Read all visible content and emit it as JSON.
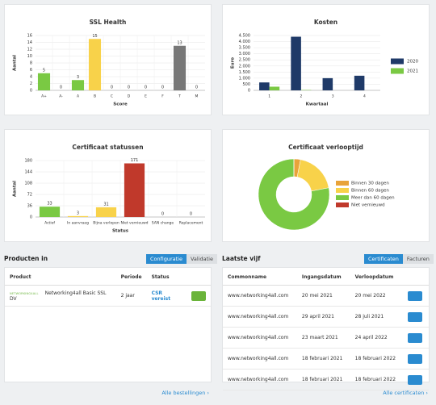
{
  "chart_data": [
    {
      "type": "bar",
      "title": "SSL Health",
      "ylabel": "Aantal",
      "xlabel": "Score",
      "categories": [
        "A+",
        "A-",
        "A",
        "B",
        "C",
        "D",
        "E",
        "F",
        "T",
        "M"
      ],
      "values": [
        5,
        0,
        3,
        15,
        0,
        0,
        0,
        0,
        13,
        0
      ],
      "colors": [
        "#7ac943",
        "#7ac943",
        "#7ac943",
        "#f8d24a",
        "#7ac943",
        "#7ac943",
        "#7ac943",
        "#7ac943",
        "#777777",
        "#7ac943"
      ],
      "ylim": [
        0,
        16
      ],
      "yticks": [
        0,
        2,
        4,
        6,
        8,
        10,
        12,
        14,
        16
      ],
      "data_labels": true,
      "grid": true
    },
    {
      "type": "bar",
      "title": "Kosten",
      "ylabel": "Euro",
      "xlabel": "Kwartaal",
      "categories": [
        "1",
        "2",
        "3",
        "4"
      ],
      "series": [
        {
          "name": "2020",
          "color": "#1f3a68",
          "values": [
            650,
            4400,
            1000,
            1200
          ]
        },
        {
          "name": "2021",
          "color": "#7ac943",
          "values": [
            300,
            30,
            null,
            null
          ]
        }
      ],
      "ylim": [
        0,
        4500
      ],
      "yticks": [
        0,
        500,
        {
          "value": 1000,
          "label": "1.000"
        },
        {
          "value": 1500,
          "label": "1.500"
        },
        {
          "value": 2000,
          "label": "2.000"
        },
        {
          "value": 2500,
          "label": "2.500"
        },
        {
          "value": 3000,
          "label": "3.000"
        },
        {
          "value": 3500,
          "label": "3.500"
        },
        {
          "value": 4000,
          "label": "4.000"
        },
        {
          "value": 4500,
          "label": "4.500"
        }
      ],
      "legend": "right",
      "data_labels": false,
      "grid": true
    },
    {
      "type": "bar",
      "title": "Certificaat statussen",
      "ylabel": "Aantal",
      "xlabel": "Status",
      "categories": [
        "Actief",
        "In aanvraag",
        "Bijna verlopen",
        "Niet vernieuwd",
        "SAN change",
        "Replacement"
      ],
      "values": [
        33,
        3,
        31,
        171,
        0,
        0
      ],
      "colors": [
        "#7ac943",
        "#f8d24a",
        "#f8d24a",
        "#c0392b",
        "#7ac943",
        "#7ac943"
      ],
      "ylim": [
        0,
        180
      ],
      "yticks": [
        0,
        36,
        72,
        108,
        144,
        180
      ],
      "data_labels": true,
      "grid": true
    },
    {
      "type": "pie",
      "title": "Certificaat verlooptijd",
      "donut": true,
      "legend": "right",
      "categories": [
        "Binnen 30 dagen",
        "Binnen 60 dagen",
        "Meer dan 60 dagen",
        "Niet vernieuwd"
      ],
      "values": [
        3,
        19,
        78,
        0
      ],
      "colors": [
        "#e8a33a",
        "#f8d24a",
        "#7ac943",
        "#c0392b"
      ]
    }
  ],
  "products": {
    "title": "Producten in",
    "tabs": [
      "Configuratie",
      "Validatie"
    ],
    "columns": [
      "Product",
      "Periode",
      "Status"
    ],
    "rows": [
      [
        "NETWORKING4ALL",
        "Networking4all Basic SSL DV",
        "2 jaar",
        "CSR vereist"
      ]
    ],
    "footer_link": "Alle bestellingen ›"
  },
  "latest": {
    "title": "Laatste vijf",
    "tabs": [
      "Certificaten",
      "Facturen"
    ],
    "columns": [
      "Commonname",
      "Ingangsdatum",
      "Verloopdatum"
    ],
    "rows": [
      [
        "www.networking4all.com",
        "20 mei 2021",
        "20 mei 2022"
      ],
      [
        "www.networking4all.com",
        "29 april 2021",
        "28 juli 2021"
      ],
      [
        "www.networking4all.com",
        "23 maart 2021",
        "24 april 2022"
      ],
      [
        "www.networking4all.com",
        "18 februari 2021",
        "18 februari 2022"
      ],
      [
        "www.networking4all.com",
        "18 februari 2021",
        "18 februari 2022"
      ]
    ],
    "footer_link": "Alle certificaten ›"
  }
}
